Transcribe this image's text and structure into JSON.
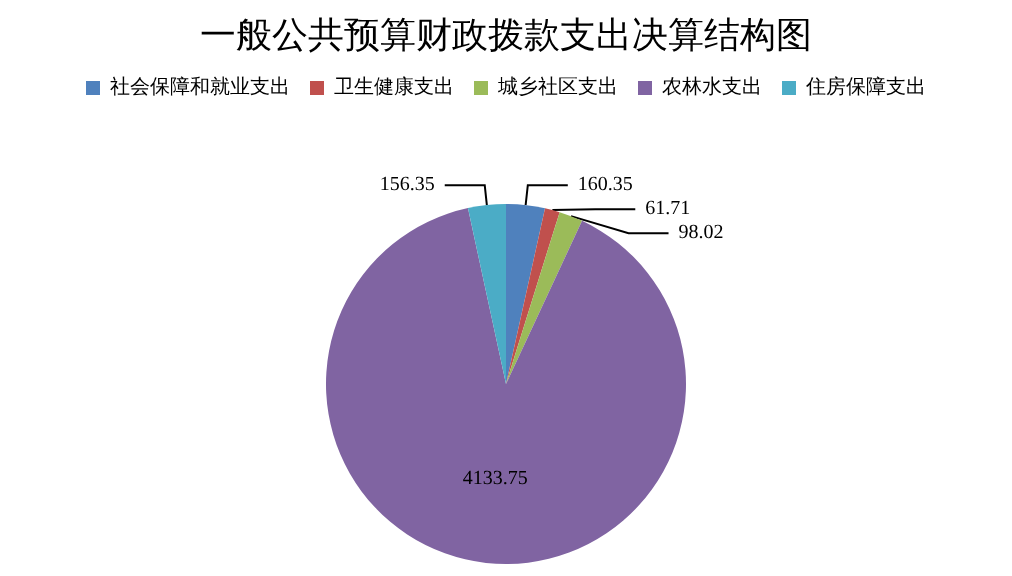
{
  "chart_data": {
    "type": "pie",
    "title": "一般公共预算财政拨款支出决算结构图",
    "categories": [
      "社会保障和就业支出",
      "卫生健康支出",
      "城乡社区支出",
      "农林水支出",
      "住房保障支出"
    ],
    "values": [
      160.35,
      61.71,
      98.02,
      4133.75,
      156.35
    ],
    "colors": [
      "#4f81bd",
      "#c0504d",
      "#9bbb59",
      "#8064a2",
      "#4bacc6"
    ],
    "data_labels": true,
    "legend": "top"
  }
}
